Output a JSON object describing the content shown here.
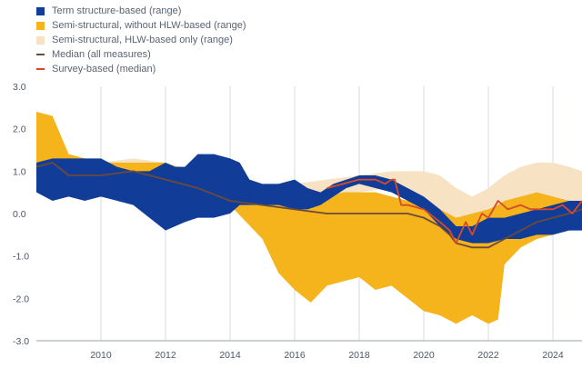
{
  "chart_data": {
    "type": "area",
    "title": "",
    "xlabel": "",
    "ylabel": "",
    "xlim": [
      2008.0,
      2024.9
    ],
    "ylim": [
      -3.0,
      3.0
    ],
    "y_ticks": [
      3.0,
      2.0,
      1.0,
      0.0,
      -1.0,
      -2.0,
      -3.0
    ],
    "y_tick_labels": [
      "3.0",
      "2.0",
      "1.0",
      "0.0",
      "-1.0",
      "-2.0",
      "-3.0"
    ],
    "x_ticks": [
      2010,
      2012,
      2014,
      2016,
      2018,
      2020,
      2022,
      2024
    ],
    "x_tick_labels": [
      "2010",
      "2012",
      "2014",
      "2016",
      "2018",
      "2020",
      "2022",
      "2024"
    ],
    "gridlines": "vertical",
    "legend": [
      {
        "label": "Term structure-based (range)",
        "color": "#113d99",
        "kind": "area"
      },
      {
        "label": "Semi-structural, without HLW-based (range)",
        "color": "#f5b31c",
        "kind": "area"
      },
      {
        "label": "Semi-structural, HLW-based only (range)",
        "color": "#f7e3c4",
        "kind": "area"
      },
      {
        "label": "Median (all measures)",
        "color": "#6b4a3a",
        "kind": "line"
      },
      {
        "label": "Survey-based (median)",
        "color": "#d64a2a",
        "kind": "line"
      }
    ],
    "series": [
      {
        "name": "Semi-structural, HLW-based only (range)",
        "color": "#f7e3c4",
        "x": [
          2008.0,
          2008.5,
          2009.0,
          2010.0,
          2011.0,
          2012.0,
          2013.0,
          2014.0,
          2015.0,
          2016.0,
          2017.0,
          2018.0,
          2019.0,
          2019.5,
          2020.0,
          2020.5,
          2021.0,
          2021.5,
          2022.0,
          2022.5,
          2023.0,
          2023.5,
          2024.0,
          2024.5,
          2024.9
        ],
        "lower": [
          1.0,
          0.9,
          0.7,
          0.6,
          0.6,
          0.7,
          0.5,
          0.2,
          0.1,
          0.2,
          0.4,
          0.5,
          0.6,
          0.4,
          0.2,
          0.0,
          -0.3,
          -0.5,
          -0.4,
          -0.2,
          0.0,
          0.2,
          0.1,
          0.2,
          0.2
        ],
        "upper": [
          1.2,
          1.2,
          1.2,
          1.2,
          1.3,
          1.2,
          1.0,
          0.6,
          0.6,
          0.7,
          0.8,
          0.9,
          1.0,
          1.0,
          1.0,
          0.9,
          0.6,
          0.4,
          0.6,
          0.9,
          1.1,
          1.2,
          1.2,
          1.1,
          1.0
        ]
      },
      {
        "name": "Semi-structural, without HLW-based (range)",
        "color": "#f5b31c",
        "x": [
          2008.0,
          2008.5,
          2009.0,
          2010.0,
          2011.0,
          2012.0,
          2013.0,
          2014.0,
          2015.0,
          2015.5,
          2016.0,
          2016.5,
          2017.0,
          2017.5,
          2018.0,
          2018.5,
          2019.0,
          2019.5,
          2020.0,
          2020.5,
          2021.0,
          2021.5,
          2022.0,
          2022.3,
          2022.5,
          2023.0,
          2023.5,
          2024.0,
          2024.5,
          2024.9
        ],
        "lower": [
          1.0,
          1.0,
          0.5,
          0.5,
          0.6,
          0.7,
          0.3,
          0.2,
          -0.6,
          -1.4,
          -1.8,
          -2.1,
          -1.7,
          -1.6,
          -1.5,
          -1.8,
          -1.7,
          -2.0,
          -2.3,
          -2.4,
          -2.6,
          -2.4,
          -2.6,
          -2.5,
          -1.2,
          -0.8,
          -0.6,
          -0.5,
          -0.3,
          -0.3
        ],
        "upper": [
          2.4,
          2.3,
          1.4,
          1.2,
          1.2,
          1.2,
          0.9,
          0.6,
          0.6,
          0.5,
          0.5,
          0.3,
          0.4,
          0.5,
          0.5,
          0.5,
          0.4,
          0.3,
          0.2,
          0.1,
          -0.1,
          0.0,
          0.1,
          0.2,
          0.3,
          0.4,
          0.5,
          0.4,
          0.3,
          0.3
        ]
      },
      {
        "name": "Term structure-based (range)",
        "color": "#113d99",
        "x": [
          2008.0,
          2008.5,
          2009.0,
          2009.5,
          2010.0,
          2010.5,
          2011.0,
          2011.5,
          2012.0,
          2012.3,
          2012.6,
          2013.0,
          2013.5,
          2014.0,
          2014.3,
          2014.6,
          2015.0,
          2015.5,
          2016.0,
          2016.4,
          2016.8,
          2017.2,
          2017.6,
          2018.0,
          2018.5,
          2019.0,
          2019.5,
          2020.0,
          2020.5,
          2021.0,
          2021.5,
          2022.0,
          2022.5,
          2023.0,
          2023.5,
          2024.0,
          2024.5,
          2024.9
        ],
        "lower": [
          0.5,
          0.3,
          0.4,
          0.3,
          0.4,
          0.3,
          0.2,
          -0.1,
          -0.4,
          -0.3,
          -0.2,
          -0.1,
          -0.1,
          0.0,
          0.2,
          0.2,
          0.2,
          0.2,
          0.1,
          0.1,
          0.2,
          0.4,
          0.6,
          0.7,
          0.6,
          0.5,
          0.3,
          0.1,
          -0.3,
          -0.6,
          -0.7,
          -0.7,
          -0.6,
          -0.6,
          -0.5,
          -0.5,
          -0.4,
          -0.4
        ],
        "upper": [
          1.2,
          1.3,
          1.3,
          1.3,
          1.3,
          1.1,
          1.0,
          1.0,
          1.2,
          1.1,
          1.1,
          1.4,
          1.4,
          1.3,
          1.2,
          0.8,
          0.7,
          0.7,
          0.8,
          0.6,
          0.5,
          0.7,
          0.8,
          0.9,
          0.9,
          0.8,
          0.6,
          0.4,
          0.1,
          -0.3,
          -0.3,
          -0.1,
          -0.1,
          0.0,
          0.1,
          0.2,
          0.3,
          0.3
        ]
      },
      {
        "name": "Median (all measures)",
        "color": "#6b4a3a",
        "x": [
          2008.0,
          2008.5,
          2009.0,
          2010.0,
          2011.0,
          2012.0,
          2013.0,
          2014.0,
          2015.0,
          2016.0,
          2017.0,
          2018.0,
          2019.0,
          2019.5,
          2020.0,
          2020.5,
          2020.8,
          2021.0,
          2021.5,
          2022.0,
          2022.5,
          2023.0,
          2023.5,
          2024.0,
          2024.5,
          2024.9
        ],
        "y": [
          1.1,
          1.2,
          0.9,
          0.9,
          1.0,
          0.8,
          0.6,
          0.3,
          0.2,
          0.1,
          0.0,
          0.0,
          0.0,
          0.0,
          -0.1,
          -0.3,
          -0.5,
          -0.7,
          -0.8,
          -0.8,
          -0.6,
          -0.4,
          -0.2,
          -0.1,
          0.0,
          0.1
        ]
      },
      {
        "name": "Survey-based (median)",
        "color": "#d64a2a",
        "x": [
          2017.0,
          2017.5,
          2018.0,
          2018.5,
          2018.8,
          2019.0,
          2019.1,
          2019.3,
          2019.5,
          2020.0,
          2020.5,
          2020.8,
          2021.0,
          2021.3,
          2021.5,
          2021.8,
          2022.0,
          2022.3,
          2022.6,
          2023.0,
          2023.3,
          2023.6,
          2024.0,
          2024.3,
          2024.6,
          2024.9
        ],
        "y": [
          0.6,
          0.7,
          0.8,
          0.8,
          0.7,
          0.8,
          0.8,
          0.2,
          0.2,
          0.1,
          -0.2,
          -0.4,
          -0.7,
          -0.2,
          -0.5,
          0.0,
          -0.1,
          0.3,
          0.1,
          0.2,
          0.1,
          0.1,
          0.1,
          0.2,
          0.0,
          0.3
        ]
      }
    ]
  }
}
